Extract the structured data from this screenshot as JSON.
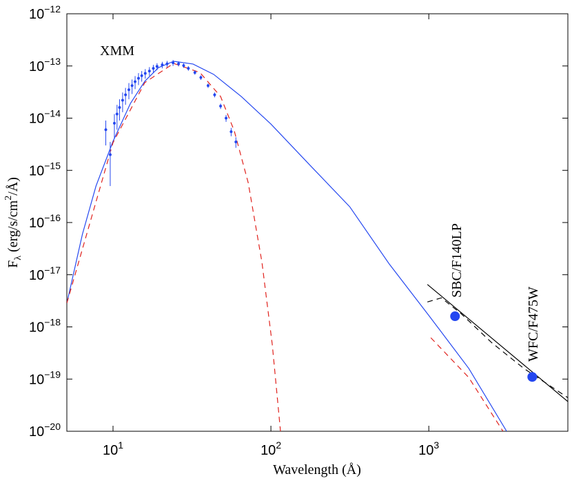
{
  "chart_data": {
    "type": "line",
    "x_label": "Wavelength (Å)",
    "y_label": "F_{λ} (erg/s/cm^{2}/Å)",
    "annotations": [
      "XMM",
      "SBC/F140LP",
      "WFC/F475W"
    ],
    "xscale": "log",
    "yscale": "log",
    "xlim": [
      5.1,
      7600
    ],
    "ylim": [
      1e-20,
      1e-12
    ],
    "xticks": [
      {
        "value": 10,
        "label": "10^{1}"
      },
      {
        "value": 100,
        "label": "10^{2}"
      },
      {
        "value": 1000,
        "label": "10^{3}"
      }
    ],
    "yticks": [
      {
        "value": 1e-20,
        "label": "10^{−20}"
      },
      {
        "value": 1e-19,
        "label": "10^{−19}"
      },
      {
        "value": 1e-18,
        "label": "10^{−18}"
      },
      {
        "value": 1e-17,
        "label": "10^{−17}"
      },
      {
        "value": 1e-16,
        "label": "10^{−16}"
      },
      {
        "value": 1e-15,
        "label": "10^{−15}"
      },
      {
        "value": 1e-14,
        "label": "10^{−14}"
      },
      {
        "value": 1e-13,
        "label": "10^{−13}"
      },
      {
        "value": 1e-12,
        "label": "10^{−12}"
      }
    ],
    "series": [
      {
        "style": "solid",
        "color": "#2447f0",
        "x": [
          5.1,
          6.4,
          7.8,
          10,
          12.9,
          15.9,
          19.4,
          24.2,
          32.1,
          43.4,
          64.9,
          100,
          177,
          316,
          562,
          1000,
          1792,
          3112
        ],
        "values": [
          2.85e-18,
          5.97e-17,
          5e-16,
          3.6e-15,
          1.92e-14,
          5.1e-14,
          9.3e-14,
          1.23e-13,
          1.09e-13,
          6.9e-14,
          2.6e-14,
          7.7e-15,
          1.25e-15,
          2e-16,
          1.6e-17,
          1.66e-18,
          1.6e-19,
          1e-20
        ]
      },
      {
        "style": "dashed",
        "color": "#e0201b",
        "x": [
          5.1,
          10,
          15.9,
          24.2,
          35.5,
          48.0,
          58.6,
          71.8,
          87.7,
          102,
          115,
          null,
          1030,
          1792,
          2950
        ],
        "values": [
          2.85e-18,
          3.4e-15,
          4.8e-14,
          1.12e-13,
          7.5e-14,
          2.6e-14,
          5.7e-15,
          5.8e-16,
          1.75e-17,
          4.6e-19,
          1e-20,
          null,
          6.2e-19,
          1.07e-19,
          1e-20
        ]
      },
      {
        "style": "solid",
        "color": "#000000",
        "x": [
          980,
          7600
        ],
        "values": [
          6.5e-18,
          3.7e-20
        ]
      },
      {
        "style": "dashed",
        "color": "#000000",
        "x": [
          980,
          1200,
          1600,
          2500,
          4000,
          7600
        ],
        "values": [
          3e-18,
          3.6e-18,
          1.8e-18,
          5e-19,
          1.6e-19,
          4.4e-20
        ]
      },
      {
        "style": "errorbar",
        "color": "#2447f0",
        "x": [
          9.0,
          9.6,
          10.2,
          10.6,
          11.0,
          11.5,
          12.0,
          12.6,
          13.2,
          13.8,
          14.5,
          15.2,
          16.0,
          17.0,
          18.0,
          19.0,
          20.5,
          22.0,
          24.0,
          26.0,
          28.0,
          30.0,
          33.0,
          36.0,
          40.0,
          44.0,
          48.0,
          52.0,
          56.0,
          60.0
        ],
        "values": [
          6e-15,
          2e-15,
          8e-15,
          1.2e-14,
          1.6e-14,
          2.2e-14,
          2.8e-14,
          3.5e-14,
          4.2e-14,
          5e-14,
          5.8e-14,
          6.5e-14,
          7.2e-14,
          8e-14,
          9e-14,
          9.8e-14,
          1.05e-13,
          1.1e-13,
          1.15e-13,
          1.1e-13,
          1.02e-13,
          9e-14,
          7.5e-14,
          6e-14,
          4.2e-14,
          2.8e-14,
          1.7e-14,
          1e-14,
          5.5e-15,
          3.5e-15
        ],
        "errors": [
          3e-15,
          1.5e-15,
          4e-15,
          6e-15,
          7e-15,
          9e-15,
          1e-14,
          1.2e-14,
          1.3e-14,
          1.4e-14,
          1.5e-14,
          1.5e-14,
          1.5e-14,
          1.5e-14,
          1.5e-14,
          1.5e-14,
          1.5e-14,
          1.5e-14,
          1.5e-14,
          1.2e-14,
          1e-14,
          9e-15,
          7e-15,
          6e-15,
          4e-15,
          3e-15,
          2e-15,
          1.5e-15,
          1e-15,
          8e-16
        ]
      },
      {
        "style": "marker",
        "color": "#2447f0",
        "x": [
          1466,
          4520
        ],
        "values": [
          1.6e-18,
          1.1e-19
        ]
      }
    ]
  }
}
